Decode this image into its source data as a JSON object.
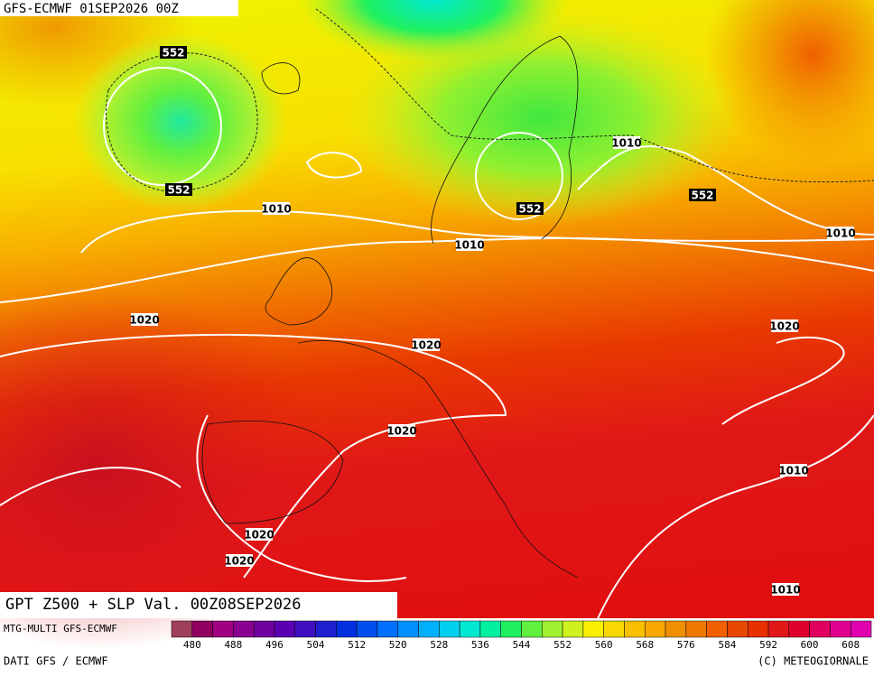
{
  "header": {
    "title": "GFS-ECMWF 01SEP2026 00Z"
  },
  "map": {
    "contour_labels": [
      552,
      552,
      552,
      552,
      1010,
      1010,
      1010,
      1010,
      1020,
      1020,
      1020,
      1020,
      1010,
      1020,
      1020,
      1010
    ]
  },
  "caption": "GPT Z500 + SLP Val. 00Z08SEP2026",
  "footer": {
    "model": "MTG-MULTI GFS-ECMWF",
    "source": "DATI GFS / ECMWF",
    "credit": "(C) METEOGIORNALE"
  },
  "legend": {
    "labels": [
      480,
      488,
      496,
      504,
      512,
      520,
      528,
      536,
      544,
      552,
      560,
      568,
      576,
      584,
      592,
      600,
      608
    ],
    "colors": [
      "#a0405a",
      "#900060",
      "#a00080",
      "#8a0090",
      "#7000a0",
      "#5a00b0",
      "#4010c0",
      "#2020d0",
      "#0030e0",
      "#0050f0",
      "#0070ff",
      "#0090ff",
      "#00b0ff",
      "#00d0f0",
      "#00e8d0",
      "#00f0a0",
      "#20f060",
      "#60f040",
      "#a0f030",
      "#d0f020",
      "#f8f000",
      "#f8d800",
      "#f8c000",
      "#f8a800",
      "#f09000",
      "#f07800",
      "#f06000",
      "#e84800",
      "#e83000",
      "#e01818",
      "#e00030",
      "#e00060",
      "#e00090",
      "#e000b0"
    ]
  }
}
